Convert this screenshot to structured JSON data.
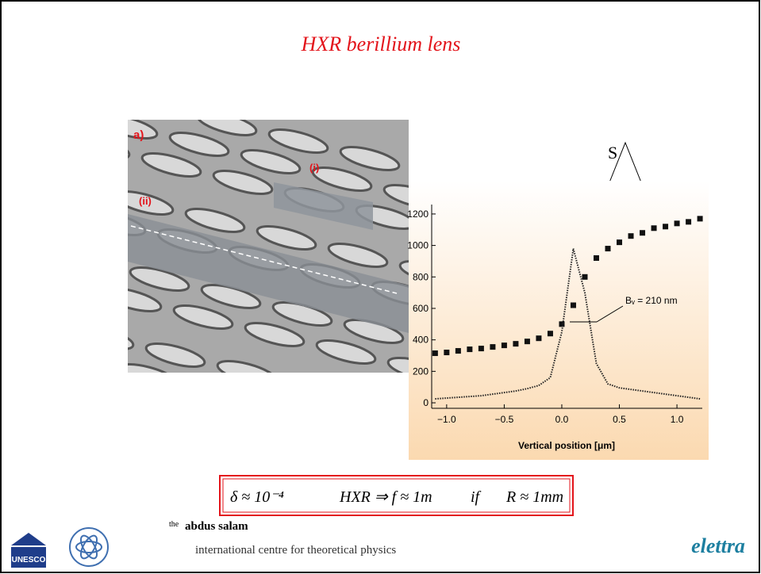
{
  "slide": {
    "title": "HXR  berillium lens"
  },
  "sem_image": {
    "labels": [
      "a)",
      "(i)",
      "(ii)"
    ]
  },
  "sketch_label": "S",
  "plot": {
    "type": "scatter",
    "xlabel": "Vertical position [μm]",
    "annotation": "Bᵥ = 210 nm",
    "xlim": [
      -1.13,
      1.22
    ],
    "ylim": [
      -35,
      1260
    ],
    "xticks": [
      {
        "value": -1.0,
        "label": "−1.0"
      },
      {
        "value": -0.5,
        "label": "−0.5"
      },
      {
        "value": 0.0,
        "label": "0.0"
      },
      {
        "value": 0.5,
        "label": "0.5"
      },
      {
        "value": 1.0,
        "label": "1.0"
      }
    ],
    "yticks": [
      0,
      200,
      400,
      600,
      800,
      1000,
      1200
    ],
    "series": [
      {
        "style": "markers",
        "color": "#111111",
        "x": [
          -1.1,
          -1.0,
          -0.9,
          -0.8,
          -0.7,
          -0.6,
          -0.5,
          -0.4,
          -0.3,
          -0.2,
          -0.1,
          0.0,
          0.1,
          0.2,
          0.3,
          0.4,
          0.5,
          0.6,
          0.7,
          0.8,
          0.9,
          1.0,
          1.1,
          1.2
        ],
        "values": [
          315,
          320,
          330,
          340,
          345,
          355,
          365,
          375,
          390,
          410,
          440,
          500,
          620,
          800,
          920,
          980,
          1020,
          1060,
          1080,
          1110,
          1120,
          1140,
          1150,
          1170
        ]
      },
      {
        "style": "dotted",
        "color": "#222222",
        "x": [
          -1.1,
          -1.0,
          -0.9,
          -0.8,
          -0.7,
          -0.6,
          -0.5,
          -0.4,
          -0.3,
          -0.2,
          -0.1,
          0.0,
          0.1,
          0.2,
          0.3,
          0.4,
          0.5,
          0.6,
          0.7,
          0.8,
          0.9,
          1.0,
          1.1,
          1.2
        ],
        "values": [
          25,
          30,
          35,
          40,
          45,
          55,
          65,
          75,
          90,
          110,
          160,
          450,
          980,
          700,
          250,
          120,
          95,
          85,
          75,
          65,
          55,
          45,
          35,
          25
        ]
      }
    ]
  },
  "formula": {
    "parts": [
      "δ ≈ 10⁻⁴",
      "HXR ⇒ f ≈ 1m",
      "if",
      "R ≈ 1mm"
    ]
  },
  "footer": {
    "logo_text": "UNESCO",
    "prefix": "the",
    "name": "abdus salam",
    "subtitle": "international centre for theoretical physics",
    "brand": "elettra"
  }
}
